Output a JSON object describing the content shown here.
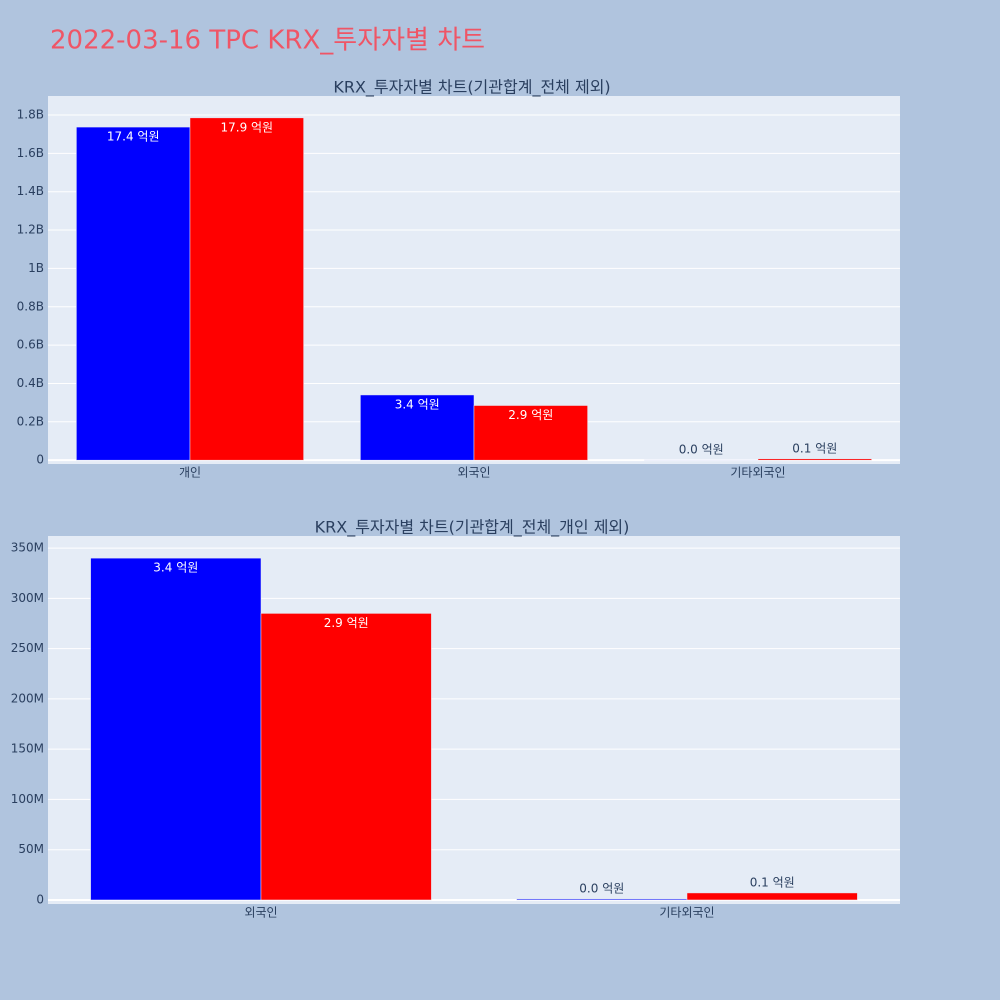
{
  "title": "2022-03-16 TPC KRX_투자자별 차트",
  "chart_data": [
    {
      "type": "bar",
      "title": "KRX_투자자별 차트(기관합계_전체 제외)",
      "categories": [
        "개인",
        "외국인",
        "기타외국인"
      ],
      "series": [
        {
          "color": "#0000ff",
          "values": [
            1737000000,
            340000000,
            1000000
          ],
          "value_labels": [
            "17.4 억원",
            "3.4 억원",
            "0.0 억원"
          ]
        },
        {
          "color": "#ff0000",
          "values": [
            1785000000,
            285000000,
            7000000
          ],
          "value_labels": [
            "17.9 억원",
            "2.9 억원",
            "0.1 억원"
          ]
        }
      ],
      "ylim": [
        -20000000,
        1899000000
      ],
      "yticks": [
        0,
        {
          "value": 200000000,
          "label": "0.2B"
        },
        {
          "value": 400000000,
          "label": "0.4B"
        },
        {
          "value": 600000000,
          "label": "0.6B"
        },
        {
          "value": 800000000,
          "label": "0.8B"
        },
        {
          "value": 1000000000,
          "label": "1B"
        },
        {
          "value": 1200000000,
          "label": "1.2B"
        },
        {
          "value": 1400000000,
          "label": "1.4B"
        },
        {
          "value": 1600000000,
          "label": "1.6B"
        },
        {
          "value": 1800000000,
          "label": "1.8B"
        }
      ],
      "grid": true
    },
    {
      "type": "bar",
      "title": "KRX_투자자별 차트(기관합계_전체_개인 제외)",
      "categories": [
        "외국인",
        "기타외국인"
      ],
      "series": [
        {
          "color": "#0000ff",
          "values": [
            340000000,
            1000000
          ],
          "value_labels": [
            "3.4 억원",
            "0.0 억원"
          ]
        },
        {
          "color": "#ff0000",
          "values": [
            285000000,
            7000000
          ],
          "value_labels": [
            "2.9 억원",
            "0.1 억원"
          ]
        }
      ],
      "ylim": [
        -4000000,
        362000000
      ],
      "yticks": [
        0,
        {
          "value": 50000000,
          "label": "50M"
        },
        {
          "value": 100000000,
          "label": "100M"
        },
        {
          "value": 150000000,
          "label": "150M"
        },
        {
          "value": 200000000,
          "label": "200M"
        },
        {
          "value": 250000000,
          "label": "250M"
        },
        {
          "value": 300000000,
          "label": "300M"
        },
        {
          "value": 350000000,
          "label": "350M"
        }
      ],
      "grid": true
    }
  ]
}
